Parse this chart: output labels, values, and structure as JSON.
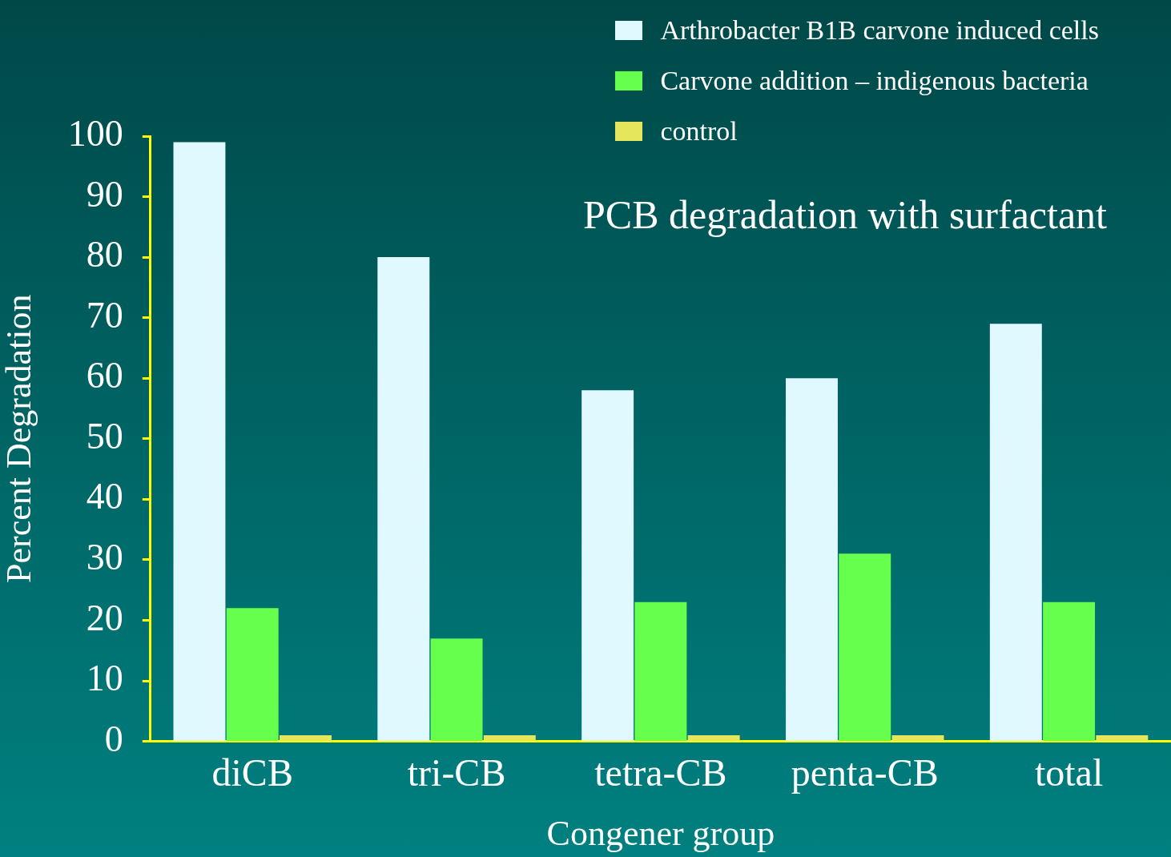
{
  "chart_data": {
    "type": "bar",
    "title": "PCB degradation with surfactant",
    "xlabel": "Congener group",
    "ylabel": "Percent Degradation",
    "categories": [
      "diCB",
      "tri-CB",
      "tetra-CB",
      "penta-CB",
      "total"
    ],
    "series": [
      {
        "name": "Arthrobacter B1B carvone induced cells",
        "color": "#e0f8ff",
        "values": [
          99,
          80,
          58,
          60,
          69
        ]
      },
      {
        "name": "Carvone addition – indigenous bacteria",
        "color": "#66ff4d",
        "values": [
          22,
          17,
          23,
          31,
          23
        ]
      },
      {
        "name": "control",
        "color": "#e6e65c",
        "values": [
          1,
          1,
          1,
          1,
          1
        ]
      }
    ],
    "ylim": [
      0,
      100
    ],
    "yticks": [
      0,
      10,
      20,
      30,
      40,
      50,
      60,
      70,
      80,
      90,
      100
    ],
    "grid": false,
    "legend": "top right"
  }
}
